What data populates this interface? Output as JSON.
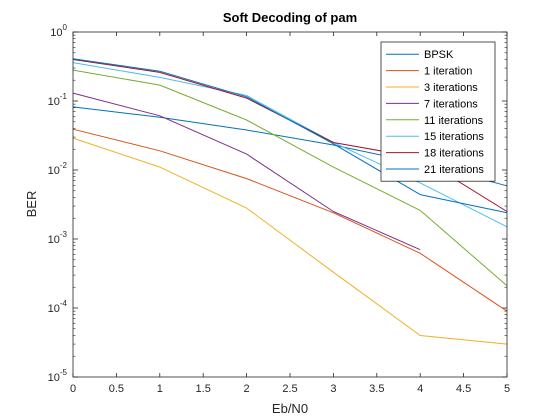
{
  "chart_data": {
    "type": "line",
    "title": "Soft Decoding of pam",
    "xlabel": "Eb/N0",
    "ylabel": "BER",
    "xlim": [
      0,
      5
    ],
    "ylim": [
      1e-05,
      1
    ],
    "yscale": "log",
    "grid": false,
    "legend_position": "top-right",
    "x_ticks": [
      "0",
      "0.5",
      "1",
      "1.5",
      "2",
      "2.5",
      "3",
      "3.5",
      "4",
      "4.5",
      "5"
    ],
    "y_ticks": [
      {
        "base": "10",
        "exp": "0"
      },
      {
        "base": "10",
        "exp": "-1"
      },
      {
        "base": "10",
        "exp": "-2"
      },
      {
        "base": "10",
        "exp": "-3"
      },
      {
        "base": "10",
        "exp": "-4"
      },
      {
        "base": "10",
        "exp": "-5"
      }
    ],
    "series": [
      {
        "name": "BPSK",
        "color": "#0072BD",
        "x": [
          0,
          1,
          2,
          3,
          4,
          5
        ],
        "y": [
          0.082,
          0.058,
          0.038,
          0.023,
          0.0125,
          0.0059
        ]
      },
      {
        "name": "1 iteration",
        "color": "#D95319",
        "x": [
          0,
          1,
          2,
          3,
          4,
          5
        ],
        "y": [
          0.039,
          0.019,
          0.0075,
          0.0024,
          0.00062,
          9e-05
        ]
      },
      {
        "name": "3 iterations",
        "color": "#EDB120",
        "x": [
          0,
          1,
          2,
          3,
          4,
          5
        ],
        "y": [
          0.029,
          0.011,
          0.0028,
          0.00033,
          4e-05,
          3e-05
        ]
      },
      {
        "name": "7 iterations",
        "color": "#7E2F8E",
        "x": [
          0,
          1,
          2,
          3,
          4
        ],
        "y": [
          0.13,
          0.061,
          0.017,
          0.0025,
          0.0007
        ]
      },
      {
        "name": "11 iterations",
        "color": "#77AC30",
        "x": [
          0,
          1,
          2,
          3,
          4,
          5
        ],
        "y": [
          0.28,
          0.17,
          0.053,
          0.011,
          0.0026,
          0.00021
        ]
      },
      {
        "name": "15 iterations",
        "color": "#4DBEEE",
        "x": [
          0,
          1,
          2,
          3,
          4,
          5
        ],
        "y": [
          0.36,
          0.22,
          0.12,
          0.025,
          0.0065,
          0.0015
        ]
      },
      {
        "name": "18 iterations",
        "color": "#A2142F",
        "x": [
          0,
          1,
          2,
          3,
          4,
          5
        ],
        "y": [
          0.4,
          0.26,
          0.11,
          0.025,
          0.015,
          0.0025
        ]
      },
      {
        "name": "21 iterations",
        "color": "#0072BD",
        "x": [
          0,
          1,
          2,
          3,
          4,
          5
        ],
        "y": [
          0.41,
          0.27,
          0.115,
          0.024,
          0.0044,
          0.0024
        ]
      }
    ]
  }
}
